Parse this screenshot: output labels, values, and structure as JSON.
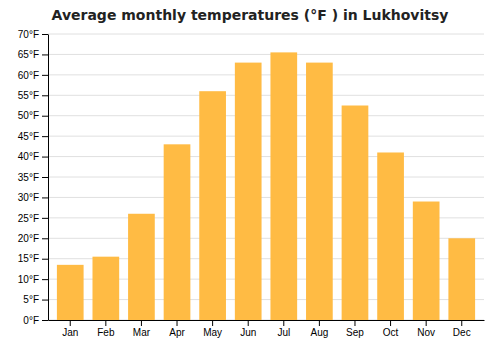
{
  "chart_data": {
    "type": "bar",
    "title": "Average monthly temperatures (°F ) in Lukhovitsy",
    "categories": [
      "Jan",
      "Feb",
      "Mar",
      "Apr",
      "May",
      "Jun",
      "Jul",
      "Aug",
      "Sep",
      "Oct",
      "Nov",
      "Dec"
    ],
    "values": [
      13.5,
      15.5,
      26,
      43,
      56,
      63,
      65.5,
      63,
      52.5,
      41,
      29,
      20
    ],
    "color": "#FFBB44",
    "ylim": [
      0,
      70
    ],
    "yticks": [
      {
        "value": 0,
        "label": "0°F"
      },
      {
        "value": 5,
        "label": "5°F"
      },
      {
        "value": 10,
        "label": "10°F"
      },
      {
        "value": 15,
        "label": "15°F"
      },
      {
        "value": 20,
        "label": "20°F"
      },
      {
        "value": 25,
        "label": "25°F"
      },
      {
        "value": 30,
        "label": "30°F"
      },
      {
        "value": 35,
        "label": "35°F"
      },
      {
        "value": 40,
        "label": "40°F"
      },
      {
        "value": 45,
        "label": "45°F"
      },
      {
        "value": 50,
        "label": "50°F"
      },
      {
        "value": 55,
        "label": "55°F"
      },
      {
        "value": 60,
        "label": "60°F"
      },
      {
        "value": 65,
        "label": "65°F"
      },
      {
        "value": 70,
        "label": "70°F"
      }
    ],
    "grid": true
  }
}
